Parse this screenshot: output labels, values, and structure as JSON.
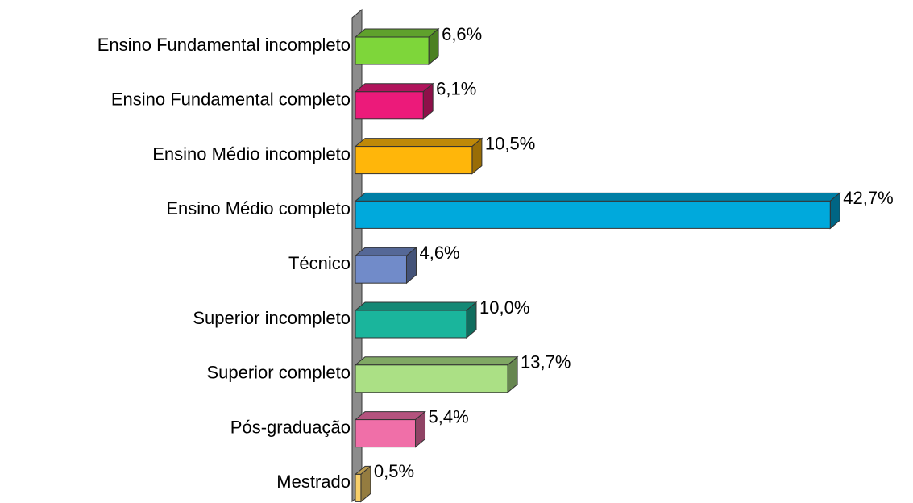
{
  "chart_data": {
    "type": "bar3d-horizontal",
    "categories": [
      "Ensino Fundamental incompleto",
      "Ensino Fundamental completo",
      "Ensino Médio incompleto",
      "Ensino Médio completo",
      "Técnico",
      "Superior incompleto",
      "Superior completo",
      "Pós-graduação",
      "Mestrado"
    ],
    "values": [
      6.6,
      6.1,
      10.5,
      42.7,
      4.6,
      10.0,
      13.7,
      5.4,
      0.5
    ],
    "value_labels": [
      "6,6%",
      "6,1%",
      "10,5%",
      "42,7%",
      "4,6%",
      "10,0%",
      "13,7%",
      "5,4%",
      "0,5%"
    ],
    "colors": [
      "#7ed63a",
      "#ec1a7a",
      "#ffb60a",
      "#00a9dc",
      "#718bc9",
      "#1ab59c",
      "#abe085",
      "#f06fa8",
      "#f7cf6a"
    ]
  }
}
